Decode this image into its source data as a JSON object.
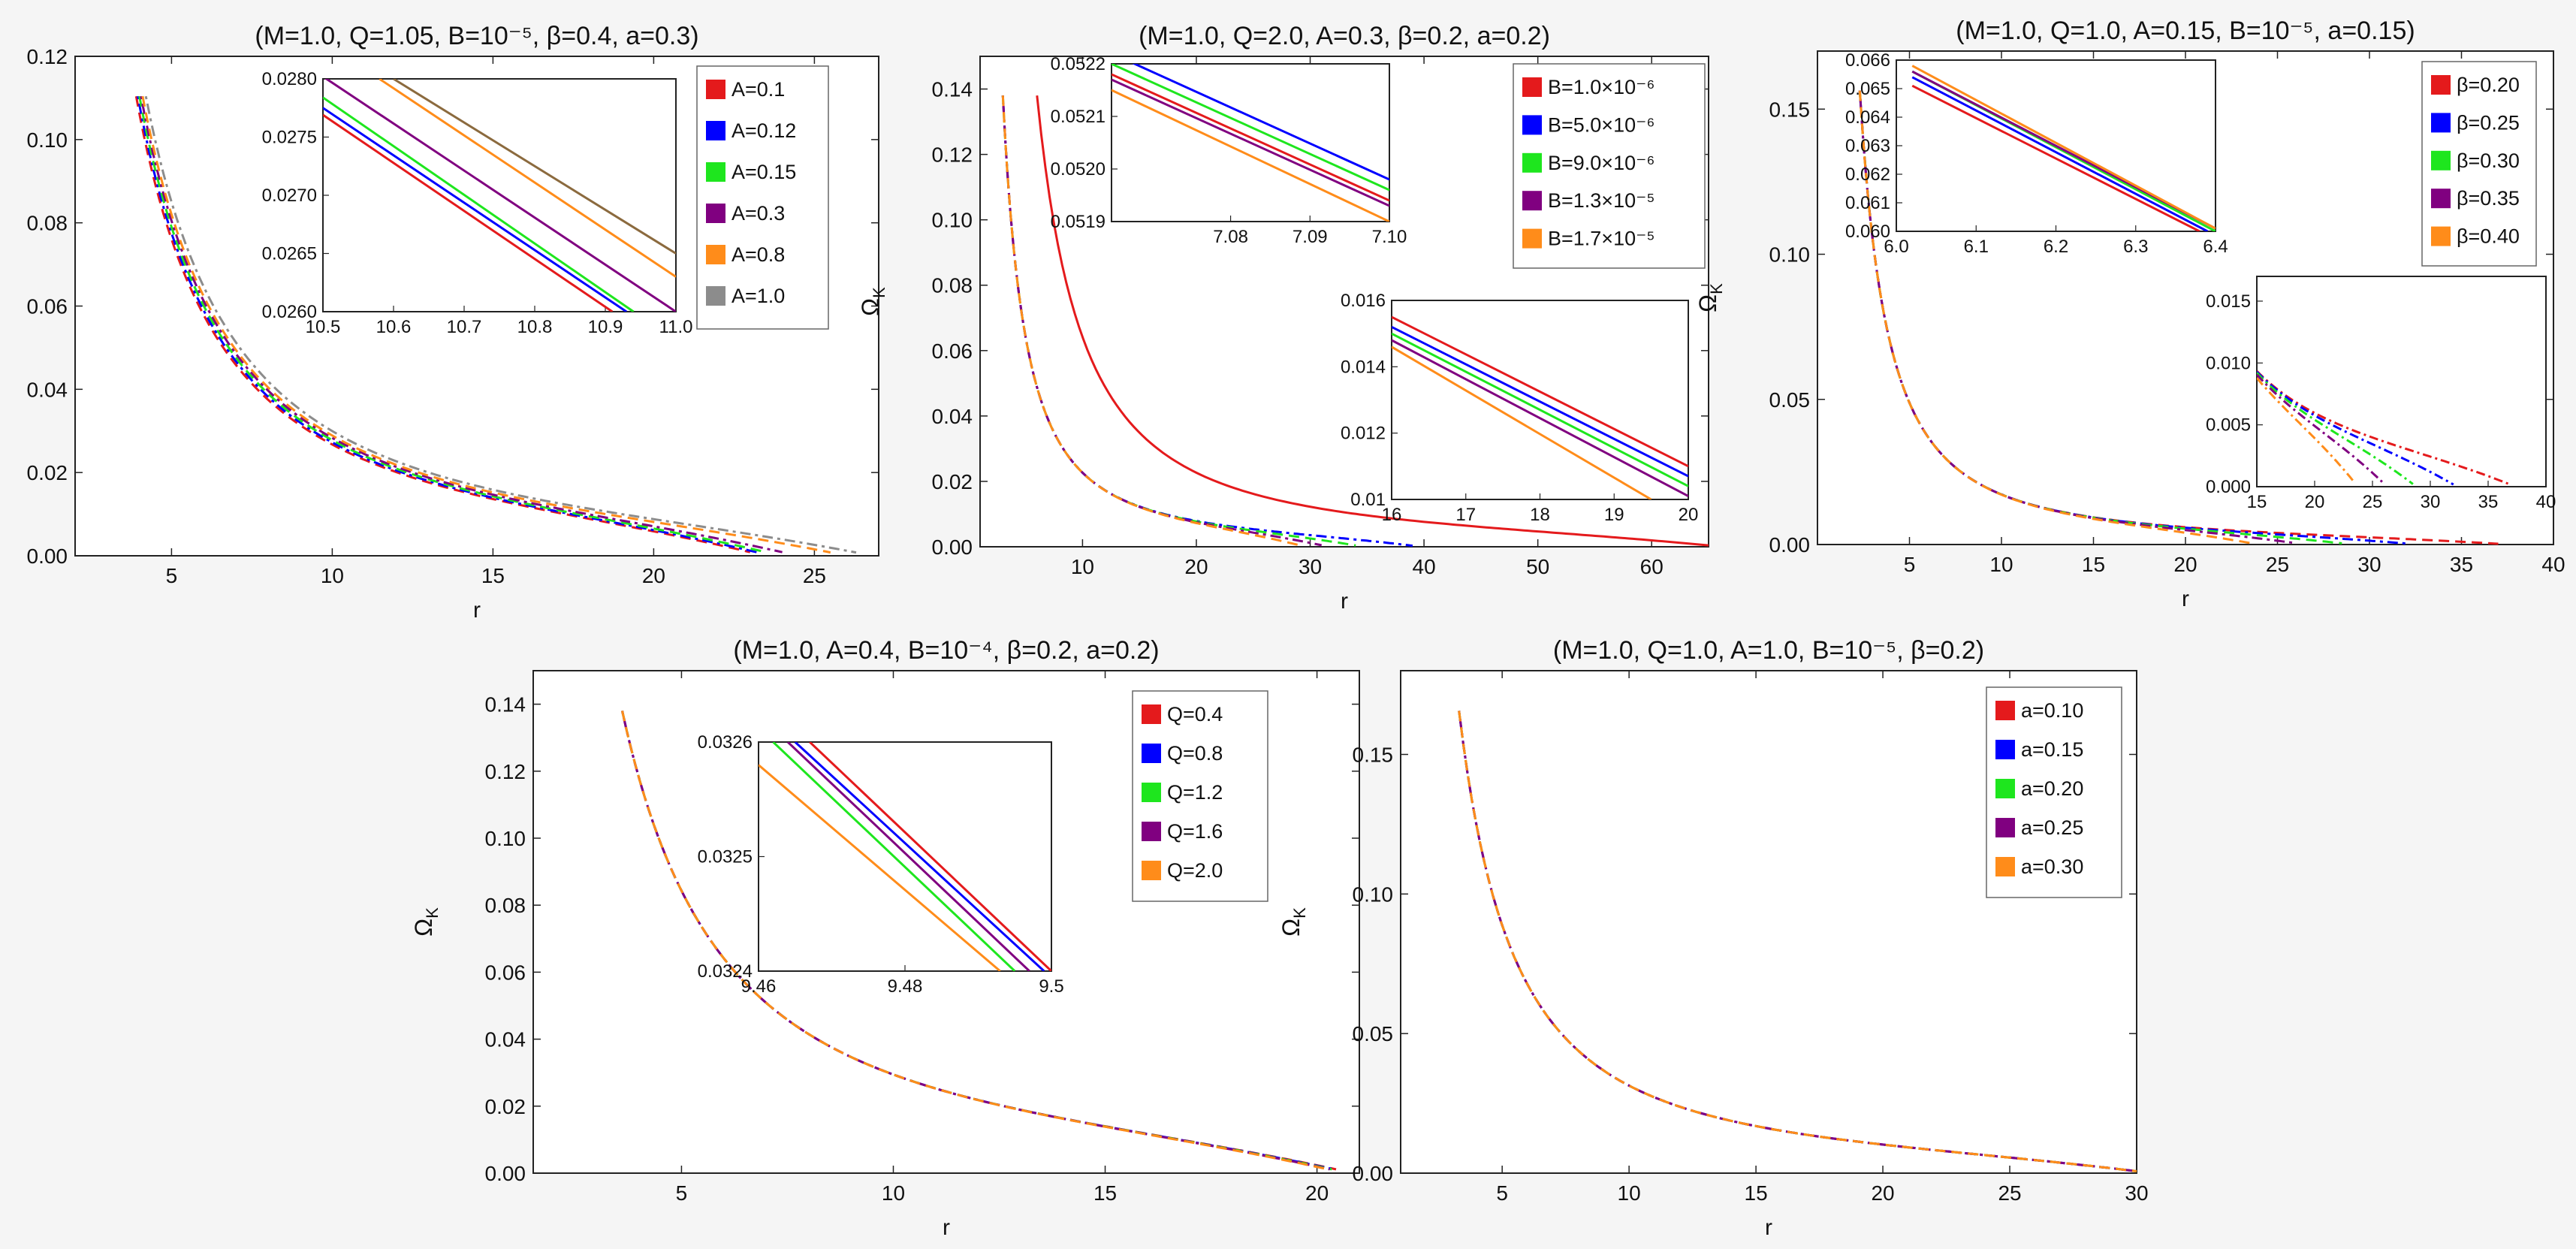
{
  "page": {
    "background": "#f5f5f5",
    "y_axis_label": "Ω",
    "y_axis_label_sub": "K"
  },
  "colors": {
    "red": "#e41a1c",
    "blue": "#0000ff",
    "green": "#1ee61e",
    "purple": "#800080",
    "orange": "#ff8c1a",
    "brown": "#8b6a3e",
    "gray": "#8c8c8c"
  },
  "chart_data": [
    {
      "id": "panel-a",
      "type": "line",
      "title": "(M=1.0, Q=1.05, B=10⁻⁵, β=0.4, a=0.3)",
      "xlabel": "r",
      "ylabel": "ΩK",
      "xlim": [
        2,
        27
      ],
      "ylim": [
        0,
        0.12
      ],
      "xticks": [
        5,
        10,
        15,
        20,
        25
      ],
      "yticks": [
        0.0,
        0.02,
        0.04,
        0.06,
        0.08,
        0.1,
        0.12
      ],
      "yticklabels": [
        "0.00",
        "0.02",
        "0.04",
        "0.06",
        "0.08",
        "0.10",
        "0.12"
      ],
      "grid": false,
      "legend_position": "top-right",
      "series": [
        {
          "name": "A=0.1",
          "color": "#e41a1c",
          "r_start": 3.9,
          "r_end": 23.0,
          "dash": "12,7"
        },
        {
          "name": "A=0.12",
          "color": "#0000ff",
          "r_start": 3.95,
          "r_end": 23.2,
          "dash": "12,7"
        },
        {
          "name": "A=0.15",
          "color": "#1ee61e",
          "r_start": 4.0,
          "r_end": 23.5,
          "dash": "12,7"
        },
        {
          "name": "A=0.3",
          "color": "#800080",
          "r_start": 4.05,
          "r_end": 24.0,
          "dash": "12,7"
        },
        {
          "name": "A=0.8",
          "color": "#ff8c1a",
          "r_start": 4.1,
          "r_end": 25.5,
          "dash": "12,7"
        },
        {
          "name": "A=1.0",
          "color": "#8c8c8c",
          "r_start": 4.2,
          "r_end": 26.3,
          "dash": "12,7"
        }
      ],
      "insets": [
        {
          "xlim": [
            10.5,
            11.0
          ],
          "ylim": [
            0.026,
            0.028
          ],
          "xticks": [
            10.5,
            10.6,
            10.7,
            10.8,
            10.9,
            11.0
          ],
          "xticklabels": [
            "10.5",
            "10.6",
            "10.7",
            "10.8",
            "10.9",
            "11.0"
          ],
          "yticks": [
            0.026,
            0.0265,
            0.027,
            0.0275,
            0.028
          ],
          "yticklabels": [
            "0.0260",
            "0.0265",
            "0.0270",
            "0.0275",
            "0.0280"
          ],
          "lines": [
            {
              "color": "#e41a1c",
              "x": [
                10.5,
                10.91
              ],
              "y": [
                0.02769,
                0.026
              ]
            },
            {
              "color": "#0000ff",
              "x": [
                10.5,
                10.93
              ],
              "y": [
                0.02775,
                0.026
              ]
            },
            {
              "color": "#1ee61e",
              "x": [
                10.5,
                10.94
              ],
              "y": [
                0.02784,
                0.026
              ]
            },
            {
              "color": "#800080",
              "x": [
                10.5,
                11.0
              ],
              "y": [
                0.02802,
                0.026
              ]
            },
            {
              "color": "#ff8c1a",
              "x": [
                10.58,
                11.0
              ],
              "y": [
                0.028,
                0.0263
              ]
            },
            {
              "color": "#8b6a3e",
              "x": [
                10.6,
                11.0
              ],
              "y": [
                0.028,
                0.0265
              ]
            }
          ]
        }
      ]
    },
    {
      "id": "panel-b",
      "type": "line",
      "title": "(M=1.0, Q=2.0, A=0.3, β=0.2, a=0.2)",
      "xlabel": "r",
      "ylabel": "ΩK",
      "xlim": [
        1,
        65
      ],
      "ylim": [
        0,
        0.15
      ],
      "xticks": [
        10,
        20,
        30,
        40,
        50,
        60
      ],
      "yticks": [
        0.0,
        0.02,
        0.04,
        0.06,
        0.08,
        0.1,
        0.12,
        0.14
      ],
      "yticklabels": [
        "0.00",
        "0.02",
        "0.04",
        "0.06",
        "0.08",
        "0.10",
        "0.12",
        "0.14"
      ],
      "grid": false,
      "legend_position": "top-right",
      "series": [
        {
          "name": "B=1.0×10⁻⁶",
          "color": "#e41a1c",
          "r_start": 6.0,
          "r_end": 65.0,
          "solid_end": 44.0
        },
        {
          "name": "B=5.0×10⁻⁶",
          "color": "#0000ff",
          "r_start": 3.0,
          "r_end": 39.0
        },
        {
          "name": "B=9.0×10⁻⁶",
          "color": "#1ee61e",
          "r_start": 3.0,
          "r_end": 34.0
        },
        {
          "name": "B=1.3×10⁻⁵",
          "color": "#800080",
          "r_start": 3.0,
          "r_end": 31.0
        },
        {
          "name": "B=1.7×10⁻⁵",
          "color": "#ff8c1a",
          "r_start": 3.0,
          "r_end": 29.0
        }
      ],
      "insets": [
        {
          "xlim": [
            7.065,
            7.1
          ],
          "ylim": [
            0.0519,
            0.0522
          ],
          "xticks": [
            7.08,
            7.09,
            7.1
          ],
          "xticklabels": [
            "7.08",
            "7.09",
            "7.10"
          ],
          "yticks": [
            0.0519,
            0.052,
            0.0521,
            0.0522
          ],
          "yticklabels": [
            "0.0519",
            "0.0520",
            "0.0521",
            "0.0522"
          ],
          "lines": [
            {
              "color": "#0000ff",
              "x": [
                7.065,
                7.1
              ],
              "y": [
                0.05222,
                0.05198
              ]
            },
            {
              "color": "#1ee61e",
              "x": [
                7.065,
                7.1
              ],
              "y": [
                0.0522,
                0.05196
              ]
            },
            {
              "color": "#e41a1c",
              "x": [
                7.065,
                7.1
              ],
              "y": [
                0.05218,
                0.05194
              ]
            },
            {
              "color": "#800080",
              "x": [
                7.065,
                7.1
              ],
              "y": [
                0.05217,
                0.05193
              ]
            },
            {
              "color": "#ff8c1a",
              "x": [
                7.065,
                7.1
              ],
              "y": [
                0.05215,
                0.0519
              ]
            }
          ]
        },
        {
          "xlim": [
            16,
            20
          ],
          "ylim": [
            0.01,
            0.016
          ],
          "xticks": [
            16,
            17,
            18,
            19,
            20
          ],
          "xticklabels": [
            "16",
            "17",
            "18",
            "19",
            "20"
          ],
          "yticks": [
            0.01,
            0.012,
            0.014,
            0.016
          ],
          "yticklabels": [
            "0.01",
            "0.012",
            "0.014",
            "0.016"
          ],
          "lines": [
            {
              "color": "#e41a1c",
              "x": [
                16,
                20
              ],
              "y": [
                0.0155,
                0.011
              ]
            },
            {
              "color": "#0000ff",
              "x": [
                16,
                20
              ],
              "y": [
                0.0152,
                0.0107
              ]
            },
            {
              "color": "#1ee61e",
              "x": [
                16,
                20
              ],
              "y": [
                0.015,
                0.0104
              ]
            },
            {
              "color": "#800080",
              "x": [
                16,
                20
              ],
              "y": [
                0.0148,
                0.0101
              ]
            },
            {
              "color": "#ff8c1a",
              "x": [
                16,
                19.5
              ],
              "y": [
                0.0146,
                0.01
              ]
            }
          ]
        }
      ]
    },
    {
      "id": "panel-c",
      "type": "line",
      "title": "(M=1.0, Q=1.0, A=0.15, B=10⁻⁵, a=0.15)",
      "xlabel": "r",
      "ylabel": "ΩK",
      "xlim": [
        0,
        40
      ],
      "ylim": [
        0,
        0.17
      ],
      "xticks": [
        5,
        10,
        15,
        20,
        25,
        30,
        35,
        40
      ],
      "yticks": [
        0.0,
        0.05,
        0.1,
        0.15
      ],
      "yticklabels": [
        "0.00",
        "0.05",
        "0.10",
        "0.15"
      ],
      "grid": false,
      "legend_position": "top-right",
      "series": [
        {
          "name": "β=0.20",
          "color": "#e41a1c",
          "r_start": 2.3,
          "r_end": 37.0
        },
        {
          "name": "β=0.25",
          "color": "#0000ff",
          "r_start": 2.3,
          "r_end": 32.0
        },
        {
          "name": "β=0.30",
          "color": "#1ee61e",
          "r_start": 2.3,
          "r_end": 28.5
        },
        {
          "name": "β=0.35",
          "color": "#800080",
          "r_start": 2.3,
          "r_end": 26.0
        },
        {
          "name": "β=0.40",
          "color": "#ff8c1a",
          "r_start": 2.3,
          "r_end": 23.5
        }
      ],
      "insets": [
        {
          "xlim": [
            6.0,
            6.4
          ],
          "ylim": [
            0.06,
            0.066
          ],
          "xticks": [
            6.0,
            6.1,
            6.2,
            6.3,
            6.4
          ],
          "xticklabels": [
            "6.0",
            "6.1",
            "6.2",
            "6.3",
            "6.4"
          ],
          "yticks": [
            0.06,
            0.061,
            0.062,
            0.063,
            0.064,
            0.065,
            0.066
          ],
          "yticklabels": [
            "0.060",
            "0.061",
            "0.062",
            "0.063",
            "0.064",
            "0.065",
            "0.066"
          ],
          "lines": [
            {
              "color": "#e41a1c",
              "x": [
                6.02,
                6.38
              ],
              "y": [
                0.0651,
                0.06
              ]
            },
            {
              "color": "#0000ff",
              "x": [
                6.02,
                6.39
              ],
              "y": [
                0.0654,
                0.06
              ]
            },
            {
              "color": "#1ee61e",
              "x": [
                6.02,
                6.4
              ],
              "y": [
                0.0656,
                0.06
              ]
            },
            {
              "color": "#800080",
              "x": [
                6.02,
                6.4
              ],
              "y": [
                0.0656,
                0.0601
              ]
            },
            {
              "color": "#ff8c1a",
              "x": [
                6.02,
                6.4
              ],
              "y": [
                0.0658,
                0.0601
              ]
            }
          ]
        },
        {
          "xlim": [
            15,
            40
          ],
          "ylim": [
            0,
            0.017
          ],
          "xticks": [
            15,
            20,
            25,
            30,
            35,
            40
          ],
          "xticklabels": [
            "15",
            "20",
            "25",
            "30",
            "35",
            "40"
          ],
          "yticks": [
            0,
            0.005,
            0.01,
            0.015
          ],
          "yticklabels": [
            "0.000",
            "0.005",
            "0.010",
            "0.015"
          ],
          "curves_from_series": true
        }
      ]
    },
    {
      "id": "panel-d",
      "type": "line",
      "title": "(M=1.0, A=0.4, B=10⁻⁴, β=0.2, a=0.2)",
      "xlabel": "r",
      "ylabel": "ΩK",
      "xlim": [
        1.5,
        21
      ],
      "ylim": [
        0,
        0.15
      ],
      "xticks": [
        5,
        10,
        15,
        20
      ],
      "yticks": [
        0.0,
        0.02,
        0.04,
        0.06,
        0.08,
        0.1,
        0.12,
        0.14
      ],
      "yticklabels": [
        "0.00",
        "0.02",
        "0.04",
        "0.06",
        "0.08",
        "0.10",
        "0.12",
        "0.14"
      ],
      "grid": false,
      "legend_position": "top-right",
      "series": [
        {
          "name": "Q=0.4",
          "color": "#e41a1c",
          "r_start": 3.6,
          "r_end": 20.45
        },
        {
          "name": "Q=0.8",
          "color": "#0000ff",
          "r_start": 3.6,
          "r_end": 20.4
        },
        {
          "name": "Q=1.2",
          "color": "#1ee61e",
          "r_start": 3.6,
          "r_end": 20.35
        },
        {
          "name": "Q=1.6",
          "color": "#800080",
          "r_start": 3.6,
          "r_end": 20.3
        },
        {
          "name": "Q=2.0",
          "color": "#ff8c1a",
          "r_start": 3.6,
          "r_end": 20.25
        }
      ],
      "insets": [
        {
          "xlim": [
            9.46,
            9.5
          ],
          "ylim": [
            0.0324,
            0.0326
          ],
          "xticks": [
            9.46,
            9.48,
            9.5
          ],
          "xticklabels": [
            "9.46",
            "9.48",
            "9.5"
          ],
          "yticks": [
            0.0324,
            0.0325,
            0.0326
          ],
          "yticklabels": [
            "0.0324",
            "0.0325",
            "0.0326"
          ],
          "lines": [
            {
              "color": "#e41a1c",
              "x": [
                9.467,
                9.5
              ],
              "y": [
                0.0326,
                0.0324
              ]
            },
            {
              "color": "#0000ff",
              "x": [
                9.465,
                9.499
              ],
              "y": [
                0.0326,
                0.0324
              ]
            },
            {
              "color": "#800080",
              "x": [
                9.464,
                9.497
              ],
              "y": [
                0.0326,
                0.0324
              ]
            },
            {
              "color": "#1ee61e",
              "x": [
                9.462,
                9.495
              ],
              "y": [
                0.0326,
                0.0324
              ]
            },
            {
              "color": "#ff8c1a",
              "x": [
                9.46,
                9.493
              ],
              "y": [
                0.03258,
                0.0324
              ]
            }
          ]
        }
      ]
    },
    {
      "id": "panel-e",
      "type": "line",
      "title": "(M=1.0, Q=1.0, A=1.0, B=10⁻⁵, β=0.2)",
      "xlabel": "r",
      "ylabel": "ΩK",
      "xlim": [
        1,
        30
      ],
      "ylim": [
        0,
        0.18
      ],
      "xticks": [
        5,
        10,
        15,
        20,
        25,
        30
      ],
      "yticks": [
        0.0,
        0.05,
        0.1,
        0.15
      ],
      "yticklabels": [
        "0.00",
        "0.05",
        "0.10",
        "0.15"
      ],
      "grid": false,
      "legend_position": "top-right",
      "series": [
        {
          "name": "a=0.10",
          "color": "#e41a1c",
          "r_start": 3.3,
          "r_end": 30.0
        },
        {
          "name": "a=0.15",
          "color": "#0000ff",
          "r_start": 3.3,
          "r_end": 30.0
        },
        {
          "name": "a=0.20",
          "color": "#1ee61e",
          "r_start": 3.3,
          "r_end": 30.0
        },
        {
          "name": "a=0.25",
          "color": "#800080",
          "r_start": 3.3,
          "r_end": 30.0
        },
        {
          "name": "a=0.30",
          "color": "#ff8c1a",
          "r_start": 3.3,
          "r_end": 30.0
        }
      ],
      "insets": []
    }
  ]
}
